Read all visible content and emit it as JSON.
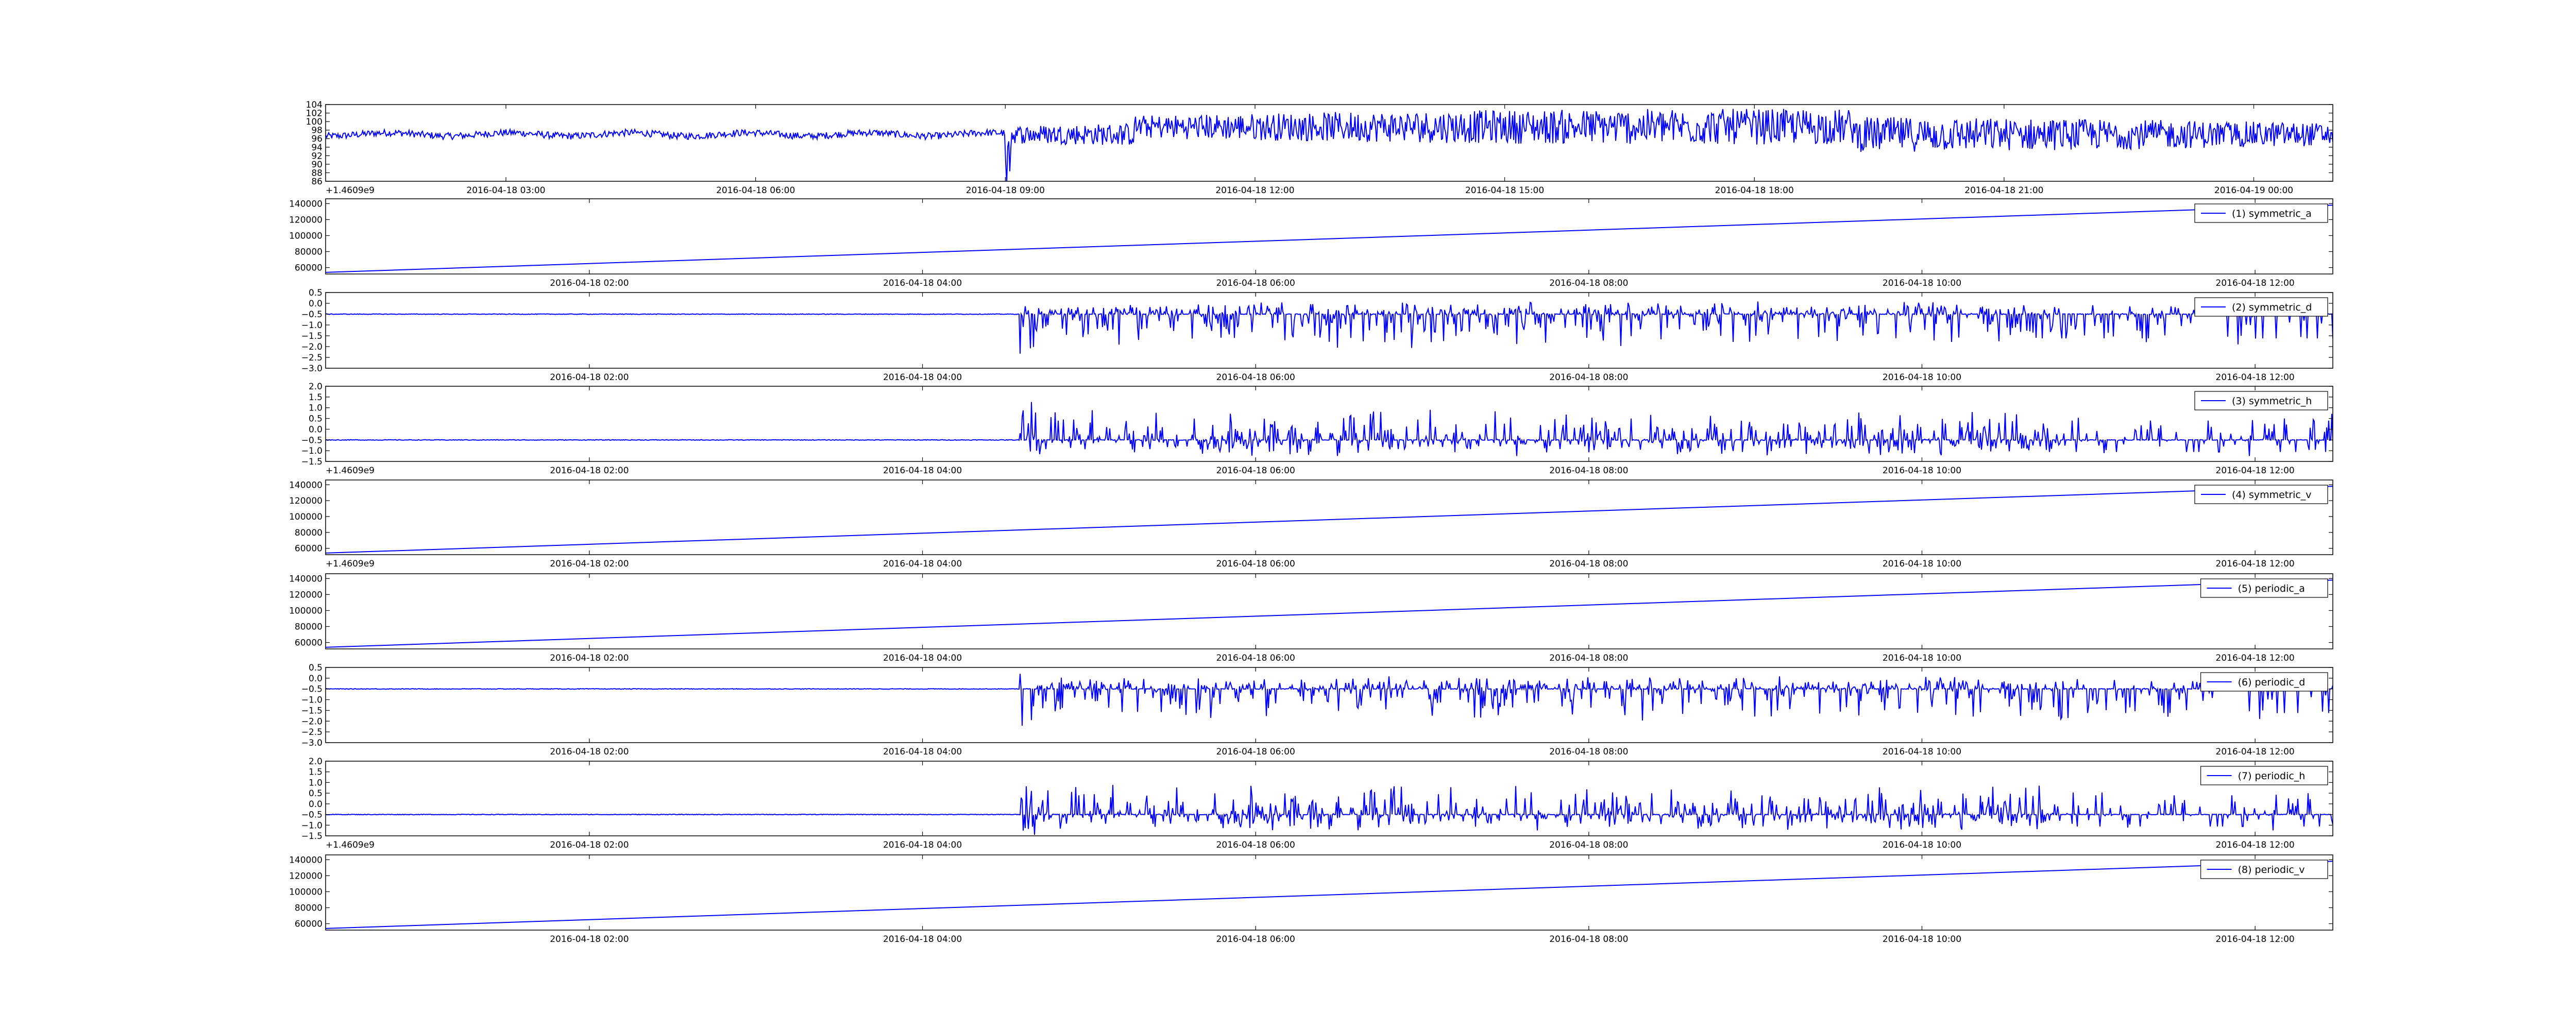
{
  "style": {
    "line_color": "#0000ff",
    "axis_color": "#000000",
    "background": "#ffffff"
  },
  "chart_data": [
    {
      "type": "line",
      "title": "",
      "legend": "",
      "legend_position": "none",
      "x_ticks": [
        "2016-04-18 03:00",
        "2016-04-18 06:00",
        "2016-04-18 09:00",
        "2016-04-18 12:00",
        "2016-04-18 15:00",
        "2016-04-18 18:00",
        "2016-04-18 21:00",
        "2016-04-19 00:00"
      ],
      "xlim": [
        "2016-04-18 00:50",
        "2016-04-19 00:57"
      ],
      "y_ticks": [
        "86",
        "88",
        "90",
        "92",
        "94",
        "96",
        "98",
        "100",
        "102",
        "104"
      ],
      "ylim": [
        86,
        104
      ],
      "offset_label": "+1.4609e9",
      "series": [
        {
          "shape": "noisy",
          "onset": "2016-04-18 09:00",
          "baseline": 97,
          "amplitude_before": 0.8,
          "amplitude_after": 3.5,
          "peak_amplitude": 12
        }
      ]
    },
    {
      "type": "line",
      "title": "",
      "legend": "(1) symmetric_a",
      "legend_position": "top-right",
      "x_ticks": [
        "2016-04-18 02:00",
        "2016-04-18 04:00",
        "2016-04-18 06:00",
        "2016-04-18 08:00",
        "2016-04-18 10:00",
        "2016-04-18 12:00"
      ],
      "xlim": [
        "2016-04-18 00:25",
        "2016-04-18 12:28"
      ],
      "y_ticks": [
        "60000",
        "80000",
        "100000",
        "120000",
        "140000"
      ],
      "ylim": [
        52000,
        146000
      ],
      "series": [
        {
          "shape": "linear",
          "y_start": 54000,
          "y_end": 138000
        }
      ]
    },
    {
      "type": "line",
      "title": "",
      "legend": "(2) symmetric_d",
      "legend_position": "top-right",
      "x_ticks": [
        "2016-04-18 02:00",
        "2016-04-18 04:00",
        "2016-04-18 06:00",
        "2016-04-18 08:00",
        "2016-04-18 10:00",
        "2016-04-18 12:00"
      ],
      "xlim": [
        "2016-04-18 00:25",
        "2016-04-18 12:28"
      ],
      "y_ticks": [
        "0.5",
        "0.0",
        "−0.5",
        "−1.0",
        "−1.5",
        "−2.0",
        "−2.5",
        "−3.0"
      ],
      "ylim": [
        -3.0,
        0.5
      ],
      "series": [
        {
          "shape": "spiky",
          "onset": "2016-04-18 04:35",
          "baseline": -0.5,
          "up_amplitude": 0.6,
          "down_amplitude": 1.6
        }
      ]
    },
    {
      "type": "line",
      "title": "",
      "legend": "(3) symmetric_h",
      "legend_position": "top-right",
      "x_ticks": [
        "2016-04-18 02:00",
        "2016-04-18 04:00",
        "2016-04-18 06:00",
        "2016-04-18 08:00",
        "2016-04-18 10:00",
        "2016-04-18 12:00"
      ],
      "xlim": [
        "2016-04-18 00:25",
        "2016-04-18 12:28"
      ],
      "y_ticks": [
        "2.0",
        "1.5",
        "1.0",
        "0.5",
        "0.0",
        "−0.5",
        "−1.0",
        "−1.5"
      ],
      "ylim": [
        -1.5,
        2.0
      ],
      "offset_label": "+1.4609e9",
      "series": [
        {
          "shape": "spiky",
          "onset": "2016-04-18 04:35",
          "baseline": -0.5,
          "up_amplitude": 1.5,
          "down_amplitude": 0.8
        }
      ]
    },
    {
      "type": "line",
      "title": "",
      "legend": "(4) symmetric_v",
      "legend_position": "top-right",
      "x_ticks": [
        "2016-04-18 02:00",
        "2016-04-18 04:00",
        "2016-04-18 06:00",
        "2016-04-18 08:00",
        "2016-04-18 10:00",
        "2016-04-18 12:00"
      ],
      "xlim": [
        "2016-04-18 00:25",
        "2016-04-18 12:28"
      ],
      "y_ticks": [
        "60000",
        "80000",
        "100000",
        "120000",
        "140000"
      ],
      "ylim": [
        52000,
        146000
      ],
      "offset_label": "+1.4609e9",
      "series": [
        {
          "shape": "linear",
          "y_start": 54000,
          "y_end": 138000
        }
      ]
    },
    {
      "type": "line",
      "title": "",
      "legend": "(5) periodic_a",
      "legend_position": "top-right",
      "x_ticks": [
        "2016-04-18 02:00",
        "2016-04-18 04:00",
        "2016-04-18 06:00",
        "2016-04-18 08:00",
        "2016-04-18 10:00",
        "2016-04-18 12:00"
      ],
      "xlim": [
        "2016-04-18 00:25",
        "2016-04-18 12:28"
      ],
      "y_ticks": [
        "60000",
        "80000",
        "100000",
        "120000",
        "140000"
      ],
      "ylim": [
        52000,
        146000
      ],
      "series": [
        {
          "shape": "linear",
          "y_start": 54000,
          "y_end": 138000
        }
      ]
    },
    {
      "type": "line",
      "title": "",
      "legend": "(6) periodic_d",
      "legend_position": "top-right",
      "x_ticks": [
        "2016-04-18 02:00",
        "2016-04-18 04:00",
        "2016-04-18 06:00",
        "2016-04-18 08:00",
        "2016-04-18 10:00",
        "2016-04-18 12:00"
      ],
      "xlim": [
        "2016-04-18 00:25",
        "2016-04-18 12:28"
      ],
      "y_ticks": [
        "0.5",
        "0.0",
        "−0.5",
        "−1.0",
        "−1.5",
        "−2.0",
        "−2.5",
        "−3.0"
      ],
      "ylim": [
        -3.0,
        0.5
      ],
      "series": [
        {
          "shape": "spiky",
          "onset": "2016-04-18 04:35",
          "baseline": -0.5,
          "up_amplitude": 0.6,
          "down_amplitude": 1.6
        }
      ]
    },
    {
      "type": "line",
      "title": "",
      "legend": "(7) periodic_h",
      "legend_position": "top-right",
      "x_ticks": [
        "2016-04-18 02:00",
        "2016-04-18 04:00",
        "2016-04-18 06:00",
        "2016-04-18 08:00",
        "2016-04-18 10:00",
        "2016-04-18 12:00"
      ],
      "xlim": [
        "2016-04-18 00:25",
        "2016-04-18 12:28"
      ],
      "y_ticks": [
        "2.0",
        "1.5",
        "1.0",
        "0.5",
        "0.0",
        "−0.5",
        "−1.0",
        "−1.5"
      ],
      "ylim": [
        -1.5,
        2.0
      ],
      "offset_label": "+1.4609e9",
      "series": [
        {
          "shape": "spiky",
          "onset": "2016-04-18 04:35",
          "baseline": -0.5,
          "up_amplitude": 1.5,
          "down_amplitude": 0.8
        }
      ]
    },
    {
      "type": "line",
      "title": "",
      "legend": "(8) periodic_v",
      "legend_position": "top-right",
      "x_ticks": [
        "2016-04-18 02:00",
        "2016-04-18 04:00",
        "2016-04-18 06:00",
        "2016-04-18 08:00",
        "2016-04-18 10:00",
        "2016-04-18 12:00"
      ],
      "xlim": [
        "2016-04-18 00:25",
        "2016-04-18 12:28"
      ],
      "y_ticks": [
        "60000",
        "80000",
        "100000",
        "120000",
        "140000"
      ],
      "ylim": [
        52000,
        146000
      ],
      "series": [
        {
          "shape": "linear",
          "y_start": 54000,
          "y_end": 138000
        }
      ]
    }
  ]
}
